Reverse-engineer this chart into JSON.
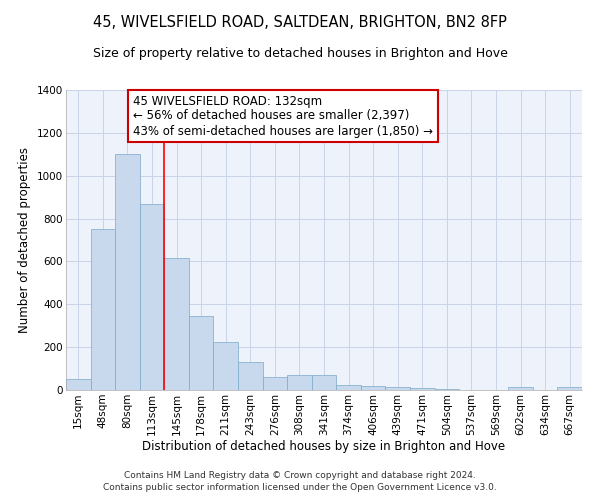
{
  "title": "45, WIVELSFIELD ROAD, SALTDEAN, BRIGHTON, BN2 8FP",
  "subtitle": "Size of property relative to detached houses in Brighton and Hove",
  "xlabel": "Distribution of detached houses by size in Brighton and Hove",
  "ylabel": "Number of detached properties",
  "footnote1": "Contains HM Land Registry data © Crown copyright and database right 2024.",
  "footnote2": "Contains public sector information licensed under the Open Government Licence v3.0.",
  "categories": [
    "15sqm",
    "48sqm",
    "80sqm",
    "113sqm",
    "145sqm",
    "178sqm",
    "211sqm",
    "243sqm",
    "276sqm",
    "308sqm",
    "341sqm",
    "374sqm",
    "406sqm",
    "439sqm",
    "471sqm",
    "504sqm",
    "537sqm",
    "569sqm",
    "602sqm",
    "634sqm",
    "667sqm"
  ],
  "values": [
    50,
    750,
    1100,
    870,
    615,
    345,
    225,
    130,
    60,
    70,
    70,
    25,
    20,
    15,
    10,
    5,
    0,
    0,
    15,
    0,
    15
  ],
  "bar_color": "#c8d9ee",
  "bar_edge_color": "#7aaaca",
  "grid_color": "#c8d4e8",
  "background_color": "#ffffff",
  "plot_bg_color": "#eef2fa",
  "red_line_x": 3.5,
  "annotation_line1": "45 WIVELSFIELD ROAD: 132sqm",
  "annotation_line2": "← 56% of detached houses are smaller (2,397)",
  "annotation_line3": "43% of semi-detached houses are larger (1,850) →",
  "annotation_box_color": "#ffffff",
  "annotation_border_color": "#cc0000",
  "ylim": [
    0,
    1400
  ],
  "yticks": [
    0,
    200,
    400,
    600,
    800,
    1000,
    1200,
    1400
  ],
  "title_fontsize": 10.5,
  "subtitle_fontsize": 9,
  "annotation_fontsize": 8.5,
  "axis_label_fontsize": 8.5,
  "tick_fontsize": 7.5,
  "footnote_fontsize": 6.5
}
